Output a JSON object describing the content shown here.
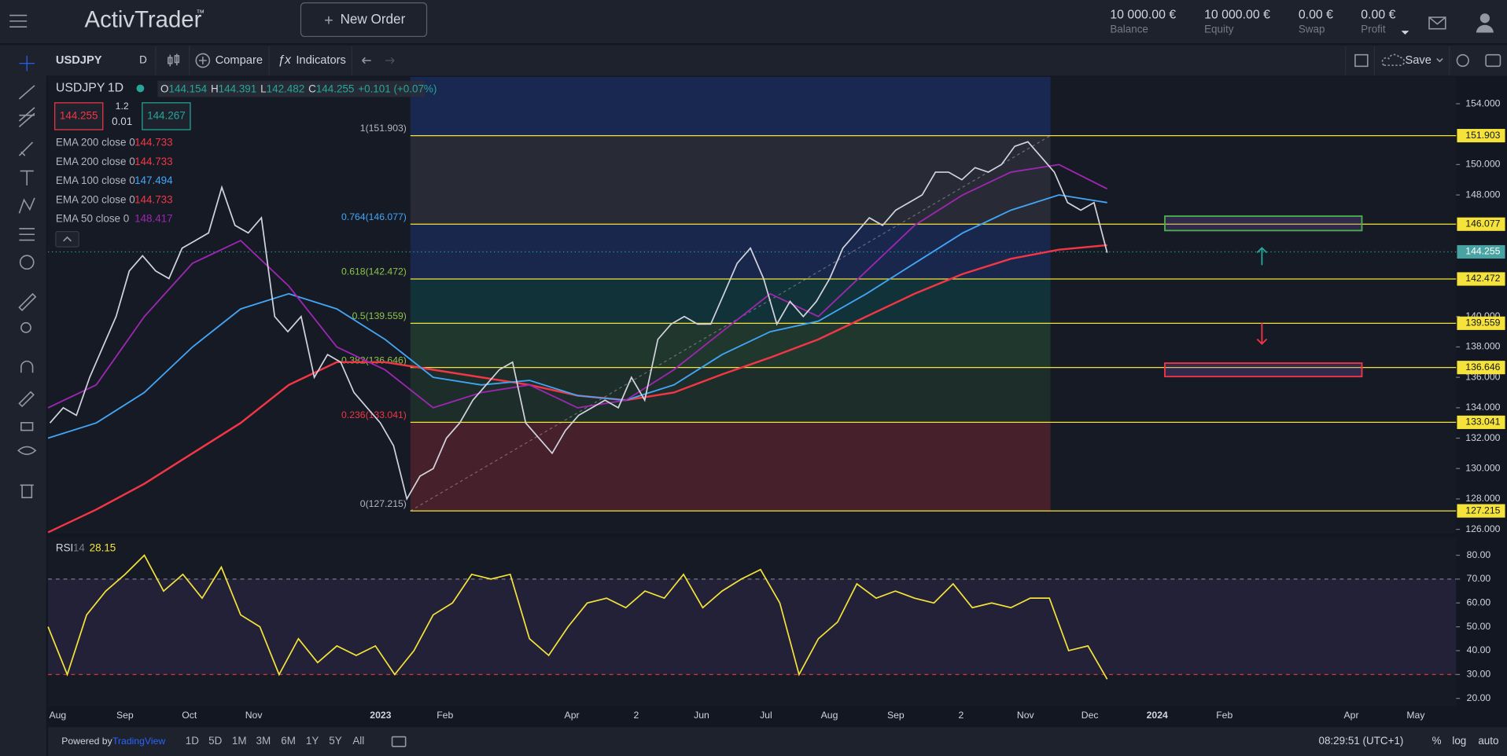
{
  "header": {
    "logo": "ActivTrader",
    "logo_mark": "™",
    "new_order": "New Order",
    "account": [
      {
        "value": "10 000.00 €",
        "label": "Balance"
      },
      {
        "value": "10 000.00 €",
        "label": "Equity"
      },
      {
        "value": "0.00 €",
        "label": "Swap"
      },
      {
        "value": "0.00 €",
        "label": "Profit"
      }
    ]
  },
  "toolbar": {
    "symbol": "USDJPY",
    "interval": "D",
    "compare": "Compare",
    "indicators": "Indicators",
    "save": "Save"
  },
  "legend": {
    "symbol": "USDJPY",
    "interval": "1D",
    "ohlc": [
      {
        "key": "O",
        "value": "144.154"
      },
      {
        "key": "H",
        "value": "144.391"
      },
      {
        "key": "L",
        "value": "142.482"
      },
      {
        "key": "C",
        "value": "144.255"
      }
    ],
    "change": "+0.101 (+0.07%)",
    "bid": "144.255",
    "spread": "1.2",
    "lot": "0.01",
    "ask": "144.267"
  },
  "chart_data": {
    "type": "line",
    "series": [
      {
        "name": "USDJPY",
        "color": "#d1d4dc",
        "values": [
          133,
          134,
          133.5,
          136,
          138,
          140,
          143,
          144,
          143,
          142.5,
          144.5,
          145,
          145.5,
          148.5,
          146,
          145.5,
          146.5,
          140,
          139,
          140,
          136,
          137.5,
          137,
          135,
          134,
          133,
          131.5,
          128,
          129.5,
          130,
          132,
          133,
          134.5,
          135.5,
          136.5,
          137,
          133,
          132,
          131,
          132.5,
          133.5,
          134,
          134.5,
          134,
          136,
          134.5,
          138.5,
          139.5,
          140,
          139.5,
          139.5,
          141.5,
          143.5,
          144.5,
          142.5,
          139.5,
          141,
          140,
          141,
          142.5,
          144.5,
          145.5,
          146.5,
          146,
          147,
          147.5,
          148,
          149.5,
          149.5,
          149,
          149.8,
          149.5,
          150,
          151.2,
          151.5,
          150.5,
          149.5,
          147.5,
          147,
          147.5,
          144.2
        ]
      }
    ],
    "indicators": [
      {
        "name": "EMA 200 close 0",
        "last": 144.733,
        "color": "#f23645"
      },
      {
        "name": "EMA 200 close 0",
        "last": 144.733,
        "color": "#f23645",
        "values": [
          125.8,
          127.3,
          129,
          131,
          133,
          135.5,
          137,
          137,
          136.5,
          136,
          135.5,
          134.8,
          134.5,
          135,
          136.2,
          137.3,
          138.5,
          140,
          141.5,
          142.8,
          143.8,
          144.4,
          144.7
        ]
      },
      {
        "name": "EMA 100 close 0",
        "last": 147.494,
        "color": "#42a5f5",
        "values": [
          132,
          133,
          135,
          138,
          140.5,
          141.5,
          140.5,
          138.5,
          136,
          135.5,
          135.8,
          134.8,
          134.5,
          135.5,
          137.5,
          139,
          139.7,
          141.5,
          143.5,
          145.5,
          147,
          148,
          147.5
        ]
      },
      {
        "name": "EMA 200 close 0",
        "last": 144.733,
        "color": "#f23645"
      },
      {
        "name": "EMA 50 close 0",
        "last": 148.417,
        "color": "#9c27b0",
        "values": [
          134,
          135.5,
          140,
          143.5,
          145,
          142,
          138,
          136.5,
          134,
          135,
          135.5,
          134,
          134.5,
          136.5,
          139,
          141.5,
          140,
          143,
          146,
          148,
          149.5,
          150,
          148.4
        ]
      }
    ],
    "ylim": [
      125.75,
      155.77
    ],
    "yticks": [
      {
        "value": 154,
        "label": "154.000"
      },
      {
        "value": 150,
        "label": "150.000"
      },
      {
        "value": 148,
        "label": "148.000"
      },
      {
        "value": 140,
        "label": "140.000"
      },
      {
        "value": 138,
        "label": "138.000"
      },
      {
        "value": 136,
        "label": "136.000"
      },
      {
        "value": 134,
        "label": "134.000"
      },
      {
        "value": 132,
        "label": "132.000"
      },
      {
        "value": 130,
        "label": "130.000"
      },
      {
        "value": 128,
        "label": "128.000"
      },
      {
        "value": 126,
        "label": "126.000"
      }
    ],
    "fib_levels": [
      {
        "value": 151.903,
        "label": "1(151.903)"
      },
      {
        "value": 146.077,
        "label": "0.764(146.077)"
      },
      {
        "value": 142.472,
        "label": "0.618(142.472)"
      },
      {
        "value": 139.559,
        "label": "0.5(139.559)"
      },
      {
        "value": 136.646,
        "label": "0.382(136.646)"
      },
      {
        "value": 133.041,
        "label": "0.236(133.041)"
      },
      {
        "value": 127.215,
        "label": "0(127.215)"
      }
    ],
    "last_price": 144.255,
    "x_labels": [
      "Aug",
      "Sep",
      "Oct",
      "Nov",
      "2023",
      "Feb",
      "Apr",
      "2",
      "Jun",
      "Jul",
      "Aug",
      "Sep",
      "2",
      "Nov",
      "Dec",
      "2024",
      "Feb",
      "Apr",
      "May"
    ],
    "rsi": {
      "name": "RSI",
      "length": "14",
      "last": 28.15,
      "color": "#f5e33b",
      "values": [
        50,
        30,
        55,
        65,
        72,
        80,
        65,
        72,
        62,
        75,
        55,
        50,
        30,
        45,
        35,
        42,
        38,
        42,
        30,
        40,
        55,
        60,
        72,
        70,
        72,
        45,
        38,
        50,
        60,
        62,
        58,
        65,
        62,
        72,
        58,
        65,
        70,
        74,
        60,
        30,
        45,
        52,
        68,
        62,
        65,
        62,
        60,
        68,
        58,
        60,
        58,
        62,
        62,
        40,
        42,
        28
      ],
      "ylim": [
        16.78,
        87.25
      ],
      "yticks": [
        {
          "value": 80,
          "label": "80.00"
        },
        {
          "value": 70,
          "label": "70.00"
        },
        {
          "value": 60,
          "label": "60.00"
        },
        {
          "value": 50,
          "label": "50.00"
        },
        {
          "value": 40,
          "label": "40.00"
        },
        {
          "value": 30,
          "label": "30.00"
        },
        {
          "value": 20,
          "label": "20.00"
        }
      ],
      "bands": [
        30,
        70
      ]
    }
  },
  "footer": {
    "powered": "Powered by",
    "brand": "TradingView",
    "ranges": [
      "1D",
      "5D",
      "1M",
      "3M",
      "6M",
      "1Y",
      "5Y",
      "All"
    ],
    "clock": "08:29:51 (UTC+1)",
    "percent": "%",
    "log": "log",
    "auto": "auto"
  }
}
